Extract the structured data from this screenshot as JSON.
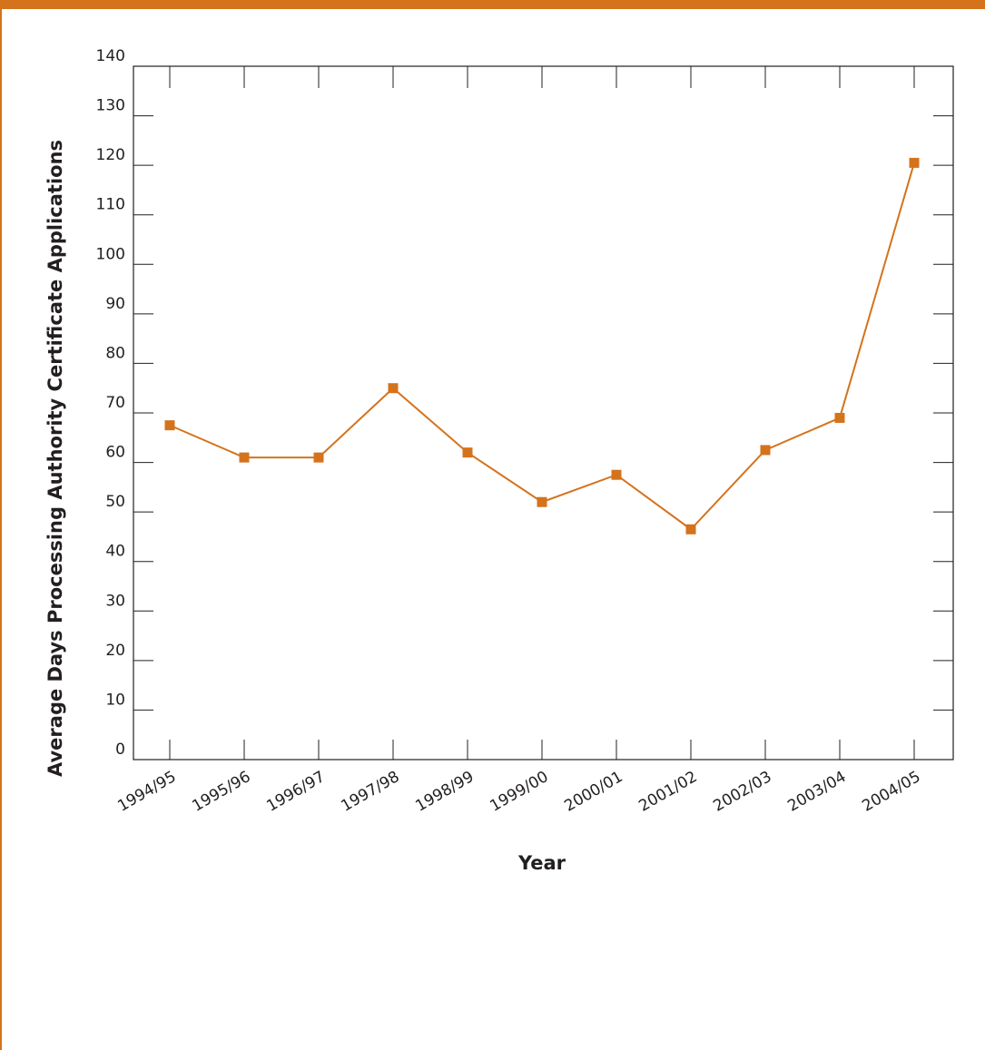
{
  "colors": {
    "accent": "#d4731c",
    "frame": "#231f20",
    "background": "#ffffff"
  },
  "chart_data": {
    "type": "line",
    "title": "",
    "xlabel": "Year",
    "ylabel": "Average Days Processing Authority Certificate Applications",
    "categories": [
      "1994/95",
      "1995/96",
      "1996/97",
      "1997/98",
      "1998/99",
      "1999/00",
      "2000/01",
      "2001/02",
      "2002/03",
      "2003/04",
      "2004/05"
    ],
    "series": [
      {
        "values": [
          67.5,
          61,
          61,
          75,
          62,
          52,
          57.5,
          46.5,
          62.5,
          69,
          120.5
        ]
      }
    ],
    "ylim": [
      0,
      140
    ],
    "yticks": [
      0,
      10,
      20,
      30,
      40,
      50,
      60,
      70,
      80,
      90,
      100,
      110,
      120,
      130,
      140
    ],
    "grid": false,
    "legend": "none",
    "marker": "square"
  }
}
